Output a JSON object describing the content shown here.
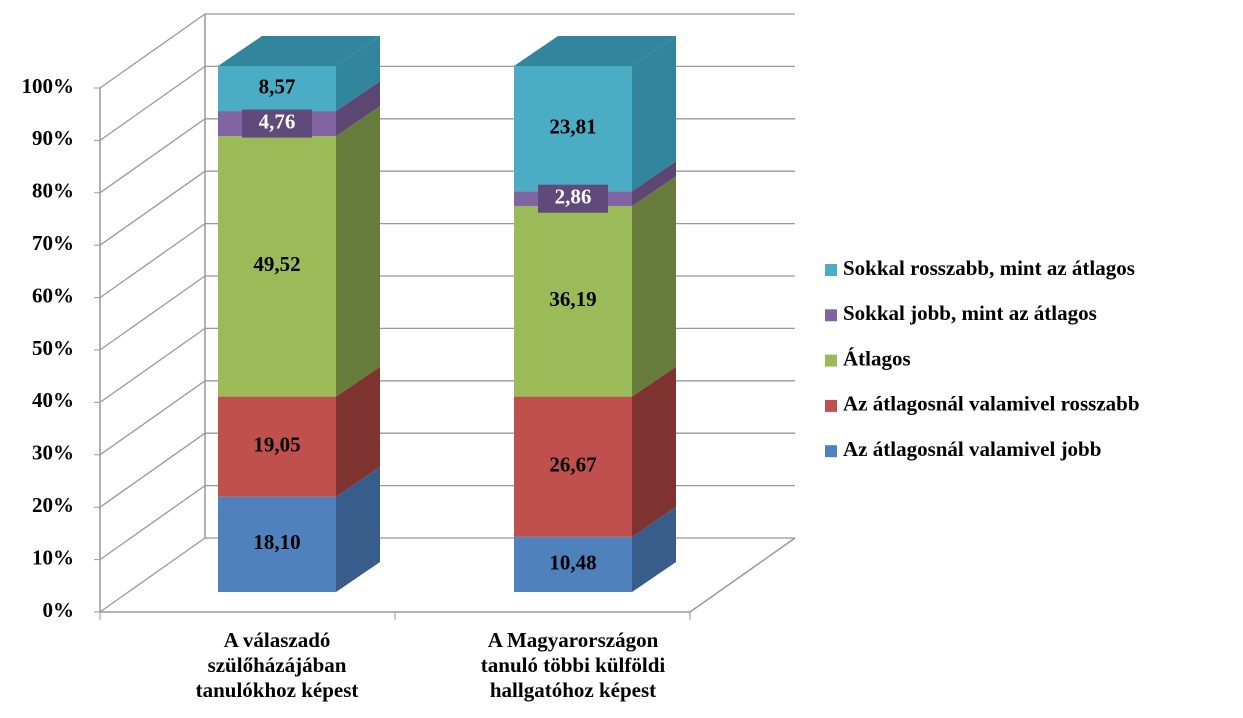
{
  "chart_data": {
    "type": "bar3d_stacked",
    "categories": [
      "A válaszadó\nszülőházájában\ntanulókhoz képest",
      "A Magyarországon\ntanuló többi külföldi\nhallgatóhoz képest"
    ],
    "series": [
      {
        "name": "Az átlagosnál valamivel jobb",
        "color": "#4f81bd",
        "side": "#385d8a",
        "values": [
          18.1,
          10.48
        ],
        "value_labels": [
          "18,10",
          "10,48"
        ]
      },
      {
        "name": "Az átlagosnál valamivel rosszabb",
        "color": "#c0504d",
        "side": "#7f3331",
        "values": [
          19.05,
          26.67
        ],
        "value_labels": [
          "19,05",
          "26,67"
        ]
      },
      {
        "name": "Átlagos",
        "color": "#9bbb59",
        "side": "#677c3b",
        "values": [
          49.52,
          36.19
        ],
        "value_labels": [
          "49,52",
          "36,19"
        ]
      },
      {
        "name": "Sokkal jobb, mint az átlagos",
        "color": "#8064a2",
        "side": "#5b4772",
        "values": [
          4.76,
          2.86
        ],
        "value_labels": [
          "4,76",
          "2,86"
        ],
        "label_box": "#5f4a7b"
      },
      {
        "name": "Sokkal rosszabb, mint az átlagos",
        "color": "#4bacc6",
        "side": "#31859c",
        "values": [
          8.57,
          23.81
        ],
        "value_labels": [
          "8,57",
          "23,81"
        ]
      }
    ],
    "ylim": [
      0,
      100
    ],
    "yticks": [
      {
        "value": 0,
        "label": "0%"
      },
      {
        "value": 10,
        "label": "10%"
      },
      {
        "value": 20,
        "label": "20%"
      },
      {
        "value": 30,
        "label": "30%"
      },
      {
        "value": 40,
        "label": "40%"
      },
      {
        "value": 50,
        "label": "50%"
      },
      {
        "value": 60,
        "label": "60%"
      },
      {
        "value": 70,
        "label": "70%"
      },
      {
        "value": 80,
        "label": "80%"
      },
      {
        "value": 90,
        "label": "90%"
      },
      {
        "value": 100,
        "label": "100%"
      }
    ],
    "grid": true,
    "legend": "right"
  }
}
